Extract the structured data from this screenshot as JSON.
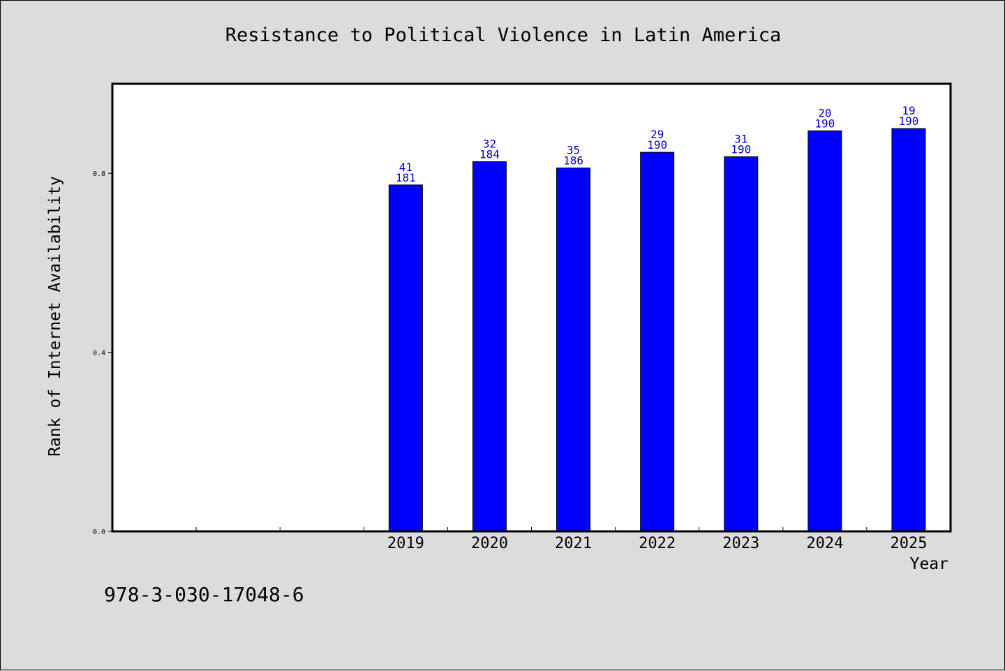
{
  "chart_data": {
    "type": "bar",
    "title": "Resistance to Political Violence in Latin America",
    "xlabel": "Year",
    "ylabel": "Rank of Internet Availability",
    "categories": [
      "",
      "",
      "",
      "2019",
      "2020",
      "2021",
      "2022",
      "2023",
      "2024",
      "2025"
    ],
    "values": [
      null,
      null,
      null,
      0.774,
      0.826,
      0.812,
      0.847,
      0.837,
      0.895,
      0.9
    ],
    "labels_top": [
      "",
      "",
      "",
      "41",
      "32",
      "35",
      "29",
      "31",
      "20",
      "19"
    ],
    "labels_bottom": [
      "",
      "",
      "",
      "181",
      "184",
      "186",
      "190",
      "190",
      "190",
      "190"
    ],
    "ylim": [
      0,
      1.0
    ],
    "yticks": [
      0.0,
      0.4,
      0.8
    ],
    "ytick_labels": [
      "0.0",
      "0.4",
      "0.8"
    ],
    "grid": false,
    "legend": "none",
    "bar_color": "#0000ff",
    "label_color": "#0000cc"
  },
  "footer": {
    "code": "978-3-030-17048-6"
  }
}
